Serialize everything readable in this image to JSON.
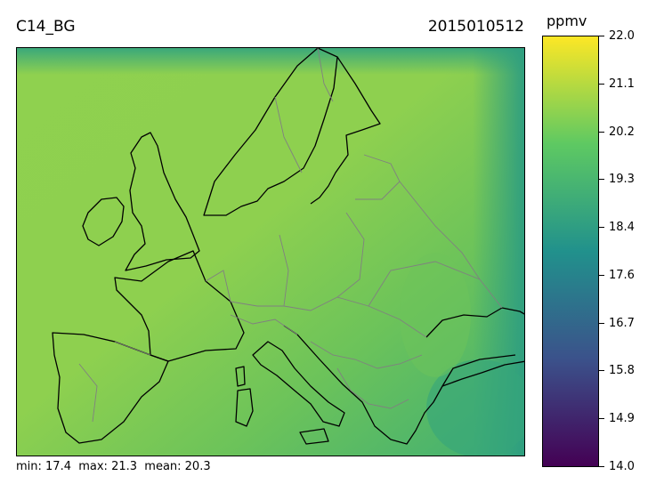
{
  "header": {
    "variable": "C14_BG",
    "timestamp": "2015010512"
  },
  "stats": {
    "text": "min: 17.4  max: 21.3  mean: 20.3"
  },
  "colorbar": {
    "unit": "ppmv",
    "ticks": [
      "22.0",
      "21.1",
      "20.2",
      "19.3",
      "18.4",
      "17.6",
      "16.7",
      "15.8",
      "14.9",
      "14.0"
    ],
    "range": [
      14.0,
      22.0
    ],
    "colormap": "viridis",
    "colors": [
      "#440154",
      "#3b528b",
      "#21918c",
      "#5ec962",
      "#fde725"
    ]
  },
  "map": {
    "region": "Europe",
    "background_color": "#8fd14f",
    "ocean_color": "#55b869",
    "coastline_color": "#000000",
    "border_color": "#808080"
  }
}
